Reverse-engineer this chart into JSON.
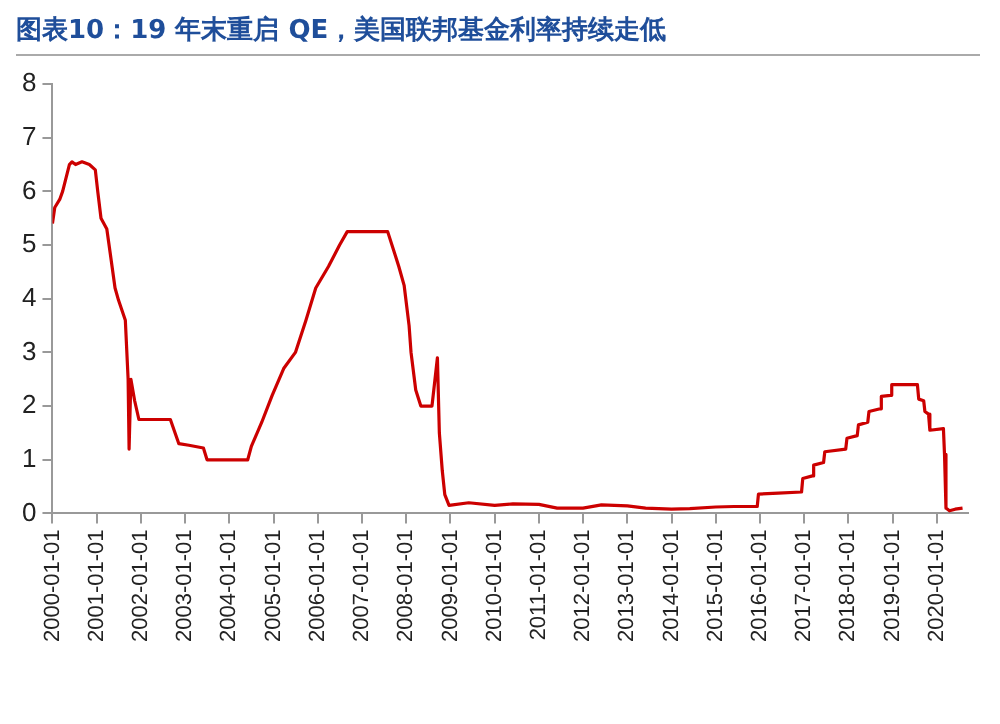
{
  "chart_data": {
    "type": "line",
    "title": "图表10：19 年末重启 QE，美国联邦基金利率持续走低",
    "x": [
      "2000-01-01",
      "2000-01-20",
      "2000-03-01",
      "2000-03-25",
      "2000-05-20",
      "2000-06-10",
      "2000-07-10",
      "2000-09-01",
      "2000-11-01",
      "2000-12-20",
      "2001-01-10",
      "2001-02-05",
      "2001-03-25",
      "2001-04-25",
      "2001-06-01",
      "2001-06-30",
      "2001-08-25",
      "2001-09-17",
      "2001-09-25",
      "2001-10-10",
      "2001-11-10",
      "2001-12-15",
      "2002-03-01",
      "2002-06-01",
      "2002-09-01",
      "2002-11-10",
      "2003-02-01",
      "2003-06-01",
      "2003-07-01",
      "2003-10-01",
      "2004-02-01",
      "2004-06-01",
      "2004-07-01",
      "2004-09-25",
      "2004-12-20",
      "2005-03-25",
      "2005-06-30",
      "2005-09-25",
      "2005-12-15",
      "2006-03-30",
      "2006-06-30",
      "2006-09-01",
      "2007-01-01",
      "2007-05-01",
      "2007-08-01",
      "2007-09-20",
      "2007-11-01",
      "2007-12-15",
      "2008-01-25",
      "2008-02-10",
      "2008-03-20",
      "2008-05-01",
      "2008-08-01",
      "2008-09-15",
      "2008-10-01",
      "2008-10-25",
      "2008-11-15",
      "2008-12-20",
      "2009-06-01",
      "2010-01-01",
      "2010-06-01",
      "2011-01-01",
      "2011-06-01",
      "2012-01-01",
      "2012-06-01",
      "2013-01-01",
      "2013-06-01",
      "2014-01-01",
      "2014-06-01",
      "2015-01-01",
      "2015-06-01",
      "2015-12-10",
      "2015-12-20",
      "2016-06-01",
      "2016-12-10",
      "2016-12-20",
      "2017-03-10",
      "2017-03-20",
      "2017-06-10",
      "2017-06-20",
      "2017-12-10",
      "2017-12-20",
      "2018-03-15",
      "2018-03-25",
      "2018-06-10",
      "2018-06-20",
      "2018-09-20",
      "2018-09-30",
      "2018-12-15",
      "2018-12-25",
      "2019-07-25",
      "2019-08-05",
      "2019-09-15",
      "2019-09-25",
      "2019-10-25",
      "2019-11-05",
      "2020-02-25",
      "2020-03-05",
      "2020-03-17",
      "2020-04-15",
      "2020-06-01",
      "2020-08-01"
    ],
    "values": [
      5.4,
      5.7,
      5.85,
      6.0,
      6.5,
      6.55,
      6.5,
      6.55,
      6.5,
      6.4,
      5.98,
      5.5,
      5.3,
      4.8,
      4.2,
      3.97,
      3.6,
      2.5,
      1.2,
      2.5,
      2.1,
      1.75,
      1.75,
      1.75,
      1.75,
      1.3,
      1.27,
      1.22,
      1.0,
      1.0,
      1.0,
      1.0,
      1.25,
      1.7,
      2.2,
      2.7,
      3.0,
      3.6,
      4.2,
      4.6,
      5.0,
      5.25,
      5.25,
      5.25,
      5.25,
      4.9,
      4.6,
      4.25,
      3.5,
      3.0,
      2.3,
      2.0,
      2.0,
      2.9,
      1.5,
      0.8,
      0.35,
      0.15,
      0.2,
      0.15,
      0.18,
      0.17,
      0.1,
      0.1,
      0.16,
      0.14,
      0.1,
      0.08,
      0.09,
      0.12,
      0.13,
      0.13,
      0.36,
      0.38,
      0.4,
      0.65,
      0.7,
      0.9,
      0.95,
      1.15,
      1.2,
      1.4,
      1.45,
      1.65,
      1.7,
      1.9,
      1.95,
      2.18,
      2.2,
      2.4,
      2.4,
      2.13,
      2.1,
      1.9,
      1.85,
      1.55,
      1.58,
      1.1,
      0.1,
      0.05,
      0.08,
      0.1
    ],
    "color": "#cc0000",
    "marker": "none",
    "grid": false,
    "xlim": [
      "2000-01-01",
      "2020-09-15"
    ],
    "ylim": [
      0,
      8
    ],
    "yticks": [
      0,
      1,
      2,
      3,
      4,
      5,
      6,
      7,
      8
    ],
    "xticks": [
      "2000-01-01",
      "2001-01-01",
      "2002-01-01",
      "2003-01-01",
      "2004-01-01",
      "2005-01-01",
      "2006-01-01",
      "2007-01-01",
      "2008-01-01",
      "2009-01-01",
      "2010-01-01",
      "2011-01-01",
      "2012-01-01",
      "2013-01-01",
      "2014-01-01",
      "2015-01-01",
      "2016-01-01",
      "2017-01-01",
      "2018-01-01",
      "2019-01-01",
      "2020-01-01"
    ]
  }
}
